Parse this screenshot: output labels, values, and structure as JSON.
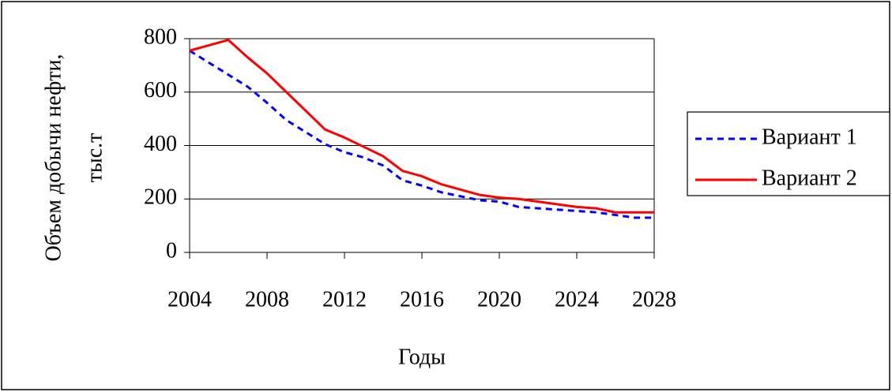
{
  "chart_data": {
    "type": "line",
    "ylabel": [
      "Объем добычи нефти,",
      "тыс.т"
    ],
    "xlabel": "Годы",
    "x": [
      2004,
      2005,
      2006,
      2007,
      2008,
      2009,
      2010,
      2011,
      2012,
      2013,
      2014,
      2015,
      2016,
      2017,
      2018,
      2019,
      2020,
      2021,
      2022,
      2023,
      2024,
      2025,
      2026,
      2027,
      2028
    ],
    "series": [
      {
        "name": "Вариант 1",
        "color": "#0000ff",
        "dash": true,
        "values": [
          755,
          710,
          665,
          620,
          560,
          495,
          450,
          405,
          375,
          355,
          325,
          270,
          250,
          225,
          210,
          195,
          190,
          170,
          165,
          160,
          155,
          150,
          140,
          130,
          130
        ]
      },
      {
        "name": "Вариант 2",
        "color": "#ff0000",
        "dash": false,
        "values": [
          755,
          775,
          795,
          730,
          670,
          600,
          530,
          460,
          430,
          395,
          360,
          305,
          285,
          255,
          235,
          215,
          205,
          200,
          190,
          180,
          170,
          165,
          150,
          150,
          150
        ]
      }
    ],
    "xlim": [
      2004,
      2028
    ],
    "xticks": [
      2004,
      2008,
      2012,
      2016,
      2020,
      2024,
      2028
    ],
    "ylim": [
      0,
      800
    ],
    "yticks": [
      0,
      200,
      400,
      600,
      800
    ],
    "grid": true,
    "legend": "right"
  }
}
